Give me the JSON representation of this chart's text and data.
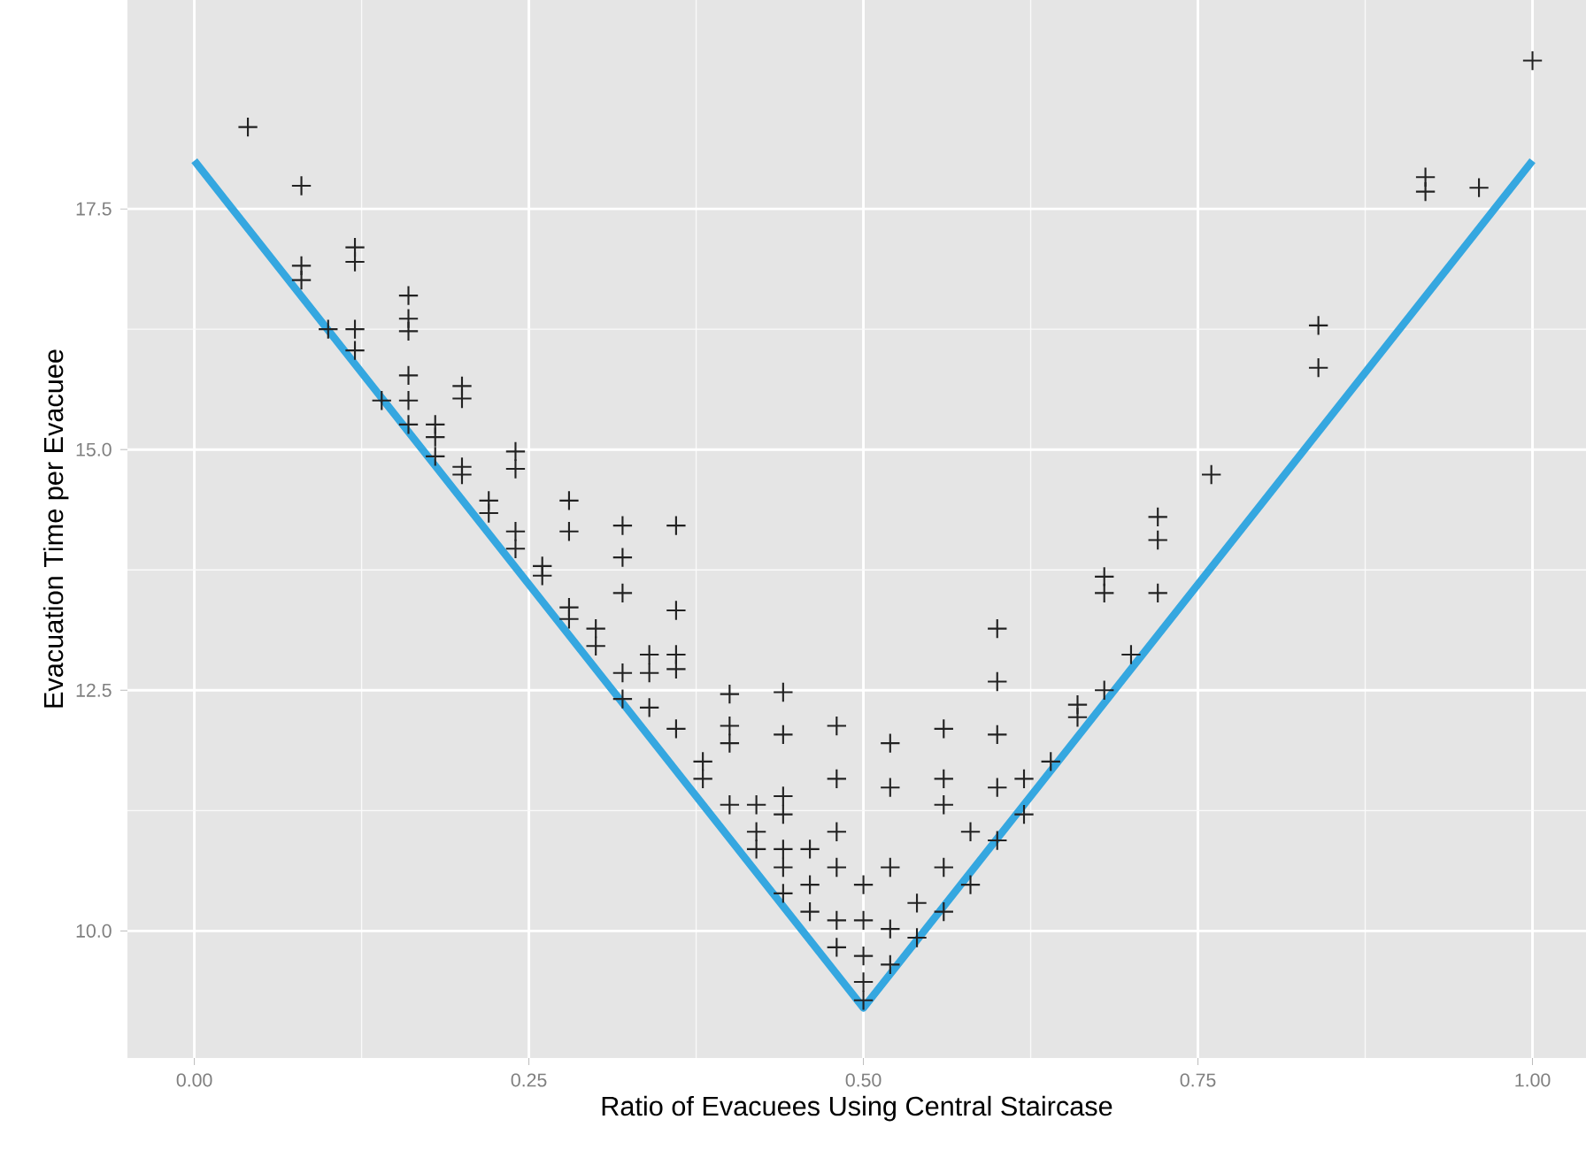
{
  "chart_data": {
    "type": "scatter",
    "xlabel": "Ratio of Evacuees Using Central Staircase",
    "ylabel": "Evacuation Time per Evacuee",
    "xlim": [
      -0.05,
      1.04
    ],
    "ylim": [
      8.68,
      19.67
    ],
    "xticks": [
      {
        "value": 0,
        "label": "0.00"
      },
      {
        "value": 0.25,
        "label": "0.25"
      },
      {
        "value": 0.5,
        "label": "0.50"
      },
      {
        "value": 0.75,
        "label": "0.75"
      },
      {
        "value": 1,
        "label": "1.00"
      }
    ],
    "yticks": [
      {
        "value": 10,
        "label": "10.0"
      },
      {
        "value": 12.5,
        "label": "12.5"
      },
      {
        "value": 15,
        "label": "15.0"
      },
      {
        "value": 17.5,
        "label": "17.5"
      }
    ],
    "grid": true,
    "series": [
      {
        "color": "#222222",
        "marker": "cross",
        "x": [
          0.04,
          0.08,
          0.08,
          0.08,
          0.1,
          0.12,
          0.12,
          0.12,
          0.12,
          0.14,
          0.16,
          0.16,
          0.16,
          0.16,
          0.16,
          0.16,
          0.18,
          0.18,
          0.18,
          0.2,
          0.2,
          0.2,
          0.2,
          0.22,
          0.22,
          0.24,
          0.24,
          0.24,
          0.24,
          0.26,
          0.26,
          0.28,
          0.28,
          0.28,
          0.28,
          0.3,
          0.3,
          0.32,
          0.32,
          0.32,
          0.32,
          0.32,
          0.34,
          0.34,
          0.34,
          0.36,
          0.36,
          0.36,
          0.36,
          0.36,
          0.38,
          0.38,
          0.4,
          0.4,
          0.4,
          0.4,
          0.42,
          0.42,
          0.42,
          0.44,
          0.44,
          0.44,
          0.44,
          0.44,
          0.44,
          0.44,
          0.46,
          0.46,
          0.46,
          0.48,
          0.48,
          0.48,
          0.48,
          0.48,
          0.48,
          0.5,
          0.5,
          0.5,
          0.5,
          0.5,
          0.52,
          0.52,
          0.52,
          0.52,
          0.52,
          0.54,
          0.54,
          0.56,
          0.56,
          0.56,
          0.56,
          0.56,
          0.58,
          0.58,
          0.6,
          0.6,
          0.6,
          0.6,
          0.6,
          0.62,
          0.62,
          0.64,
          0.66,
          0.66,
          0.68,
          0.68,
          0.68,
          0.7,
          0.72,
          0.72,
          0.72,
          0.76,
          0.84,
          0.84,
          0.92,
          0.92,
          0.96,
          1.0
        ],
        "values": [
          18.35,
          17.74,
          16.91,
          16.76,
          16.25,
          17.1,
          16.95,
          16.25,
          16.03,
          15.51,
          16.6,
          16.36,
          16.23,
          15.77,
          15.51,
          15.26,
          15.26,
          15.13,
          14.93,
          15.66,
          15.53,
          14.82,
          14.74,
          14.47,
          14.34,
          14.98,
          14.8,
          14.15,
          13.97,
          13.79,
          13.69,
          14.47,
          14.15,
          13.36,
          13.24,
          13.14,
          12.96,
          14.21,
          13.88,
          13.51,
          12.68,
          12.41,
          12.87,
          12.68,
          12.32,
          14.21,
          13.33,
          12.87,
          12.72,
          12.1,
          11.76,
          11.58,
          12.46,
          12.13,
          11.95,
          11.31,
          11.31,
          11.03,
          10.85,
          12.48,
          12.04,
          11.4,
          11.21,
          10.85,
          10.66,
          10.39,
          10.85,
          10.48,
          10.2,
          12.13,
          11.58,
          11.03,
          10.66,
          10.11,
          9.83,
          10.48,
          10.11,
          9.74,
          9.47,
          9.28,
          11.95,
          11.49,
          10.66,
          10.02,
          9.65,
          10.29,
          9.93,
          12.1,
          11.58,
          11.31,
          10.66,
          10.2,
          11.03,
          10.48,
          13.14,
          12.59,
          12.04,
          11.49,
          10.94,
          11.58,
          11.21,
          11.76,
          12.35,
          12.22,
          13.68,
          13.51,
          12.5,
          12.87,
          14.3,
          14.06,
          13.51,
          14.74,
          16.29,
          15.85,
          17.83,
          17.68,
          17.72,
          19.04
        ]
      },
      {
        "type": "line",
        "color": "#35a7e0",
        "x": [
          0,
          0.5,
          1
        ],
        "values": [
          18,
          9.2,
          18
        ]
      }
    ]
  }
}
